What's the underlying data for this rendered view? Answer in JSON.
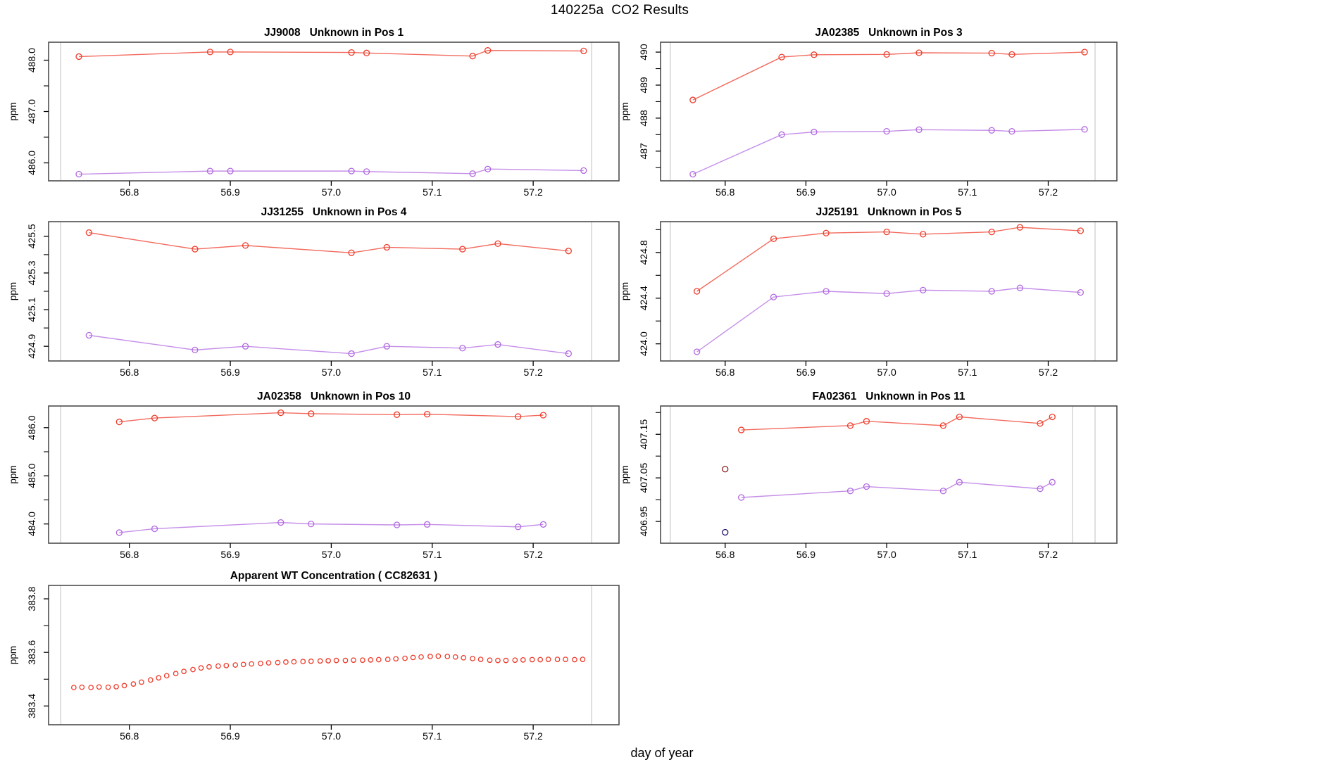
{
  "title": "140225a  CO2 Results",
  "xlabel": "day of year",
  "colors": {
    "red": "#ee3a28",
    "purple": "#b168e0",
    "dark_red": "#8b1a1a",
    "dark_navy": "#23136b",
    "vline_gray": "#d2d2d2",
    "axis": "#4d4d4d",
    "text": "#000000",
    "background": "#ffffff"
  },
  "chart_data": [
    {
      "id": "pos1",
      "type": "line",
      "row": 0,
      "col": 0,
      "title": "JJ9008   Unknown in Pos 1",
      "ylabel": "ppm",
      "xlim": [
        56.72,
        57.285
      ],
      "ylim": [
        485.65,
        488.35
      ],
      "xticks": [
        56.8,
        56.9,
        57.0,
        57.1,
        57.2
      ],
      "xtick_labels": [
        "56.8",
        "56.9",
        "57.0",
        "57.1",
        "57.2"
      ],
      "yticks": [
        486.0,
        487.0,
        488.0
      ],
      "ytick_labels": [
        "486.0",
        "487.0",
        "488.0"
      ],
      "yticks_minor": [
        486.5,
        487.5
      ],
      "vlines": [
        56.732,
        57.258
      ],
      "series": [
        {
          "name": "red-series",
          "color": "red",
          "line": true,
          "marker_r": 4,
          "x": [
            56.75,
            56.88,
            56.9,
            57.02,
            57.035,
            57.14,
            57.155,
            57.25
          ],
          "y": [
            488.07,
            488.16,
            488.16,
            488.15,
            488.14,
            488.08,
            488.19,
            488.18
          ]
        },
        {
          "name": "purple-series",
          "color": "purple",
          "line": true,
          "marker_r": 4,
          "x": [
            56.75,
            56.88,
            56.9,
            57.02,
            57.035,
            57.14,
            57.155,
            57.25
          ],
          "y": [
            485.78,
            485.84,
            485.84,
            485.84,
            485.83,
            485.79,
            485.88,
            485.85
          ]
        }
      ]
    },
    {
      "id": "pos3",
      "type": "line",
      "row": 0,
      "col": 1,
      "title": "JA02385   Unknown in Pos 3",
      "ylabel": "ppm",
      "xlim": [
        56.72,
        57.285
      ],
      "ylim": [
        486.1,
        490.3
      ],
      "xticks": [
        56.8,
        56.9,
        57.0,
        57.1,
        57.2
      ],
      "xtick_labels": [
        "56.8",
        "56.9",
        "57.0",
        "57.1",
        "57.2"
      ],
      "yticks": [
        487,
        488,
        489,
        490
      ],
      "ytick_labels": [
        "487",
        "488",
        "489",
        "490"
      ],
      "yticks_minor": [
        486.5,
        487.5,
        488.5,
        489.5
      ],
      "vlines": [
        56.732,
        57.258
      ],
      "series": [
        {
          "name": "red-series",
          "color": "red",
          "line": true,
          "marker_r": 4,
          "x": [
            56.76,
            56.87,
            56.91,
            57.0,
            57.04,
            57.13,
            57.155,
            57.245
          ],
          "y": [
            488.55,
            489.85,
            489.92,
            489.93,
            489.98,
            489.97,
            489.93,
            490.0
          ]
        },
        {
          "name": "purple-series",
          "color": "purple",
          "line": true,
          "marker_r": 4,
          "x": [
            56.76,
            56.87,
            56.91,
            57.0,
            57.04,
            57.13,
            57.155,
            57.245
          ],
          "y": [
            486.3,
            487.5,
            487.58,
            487.6,
            487.65,
            487.63,
            487.6,
            487.66
          ]
        }
      ]
    },
    {
      "id": "pos4",
      "type": "line",
      "row": 1,
      "col": 0,
      "title": "JJ31255   Unknown in Pos 4",
      "ylabel": "ppm",
      "xlim": [
        56.72,
        57.285
      ],
      "ylim": [
        424.82,
        425.58
      ],
      "xticks": [
        56.8,
        56.9,
        57.0,
        57.1,
        57.2
      ],
      "xtick_labels": [
        "56.8",
        "56.9",
        "57.0",
        "57.1",
        "57.2"
      ],
      "yticks": [
        424.9,
        425.1,
        425.3,
        425.5
      ],
      "ytick_labels": [
        "424.9",
        "425.1",
        "425.3",
        "425.5"
      ],
      "yticks_minor": [
        425.0,
        425.2,
        425.4
      ],
      "vlines": [
        56.732,
        57.258
      ],
      "series": [
        {
          "name": "red-series",
          "color": "red",
          "line": true,
          "marker_r": 4,
          "x": [
            56.76,
            56.865,
            56.915,
            57.02,
            57.055,
            57.13,
            57.165,
            57.235
          ],
          "y": [
            425.52,
            425.43,
            425.45,
            425.41,
            425.44,
            425.43,
            425.46,
            425.42
          ]
        },
        {
          "name": "purple-series",
          "color": "purple",
          "line": true,
          "marker_r": 4,
          "x": [
            56.76,
            56.865,
            56.915,
            57.02,
            57.055,
            57.13,
            57.165,
            57.235
          ],
          "y": [
            424.96,
            424.88,
            424.9,
            424.86,
            424.9,
            424.89,
            424.91,
            424.86
          ]
        }
      ]
    },
    {
      "id": "pos5",
      "type": "line",
      "row": 1,
      "col": 1,
      "title": "JJ25191   Unknown in Pos 5",
      "ylabel": "ppm",
      "xlim": [
        56.72,
        57.285
      ],
      "ylim": [
        423.85,
        425.07
      ],
      "xticks": [
        56.8,
        56.9,
        57.0,
        57.1,
        57.2
      ],
      "xtick_labels": [
        "56.8",
        "56.9",
        "57.0",
        "57.1",
        "57.2"
      ],
      "yticks": [
        424.0,
        424.4,
        424.8
      ],
      "ytick_labels": [
        "424.0",
        "424.4",
        "424.8"
      ],
      "yticks_minor": [
        424.2,
        424.6,
        425.0
      ],
      "vlines": [
        56.732,
        57.258
      ],
      "series": [
        {
          "name": "red-series",
          "color": "red",
          "line": true,
          "marker_r": 4,
          "x": [
            56.765,
            56.86,
            56.925,
            57.0,
            57.045,
            57.13,
            57.165,
            57.24
          ],
          "y": [
            424.46,
            424.92,
            424.97,
            424.98,
            424.96,
            424.98,
            425.02,
            424.99
          ]
        },
        {
          "name": "purple-series",
          "color": "purple",
          "line": true,
          "marker_r": 4,
          "x": [
            56.765,
            56.86,
            56.925,
            57.0,
            57.045,
            57.13,
            57.165,
            57.24
          ],
          "y": [
            423.93,
            424.41,
            424.46,
            424.44,
            424.47,
            424.46,
            424.49,
            424.45
          ]
        }
      ]
    },
    {
      "id": "pos10",
      "type": "line",
      "row": 2,
      "col": 0,
      "title": "JA02358   Unknown in Pos 10",
      "ylabel": "ppm",
      "xlim": [
        56.72,
        57.285
      ],
      "ylim": [
        483.6,
        486.45
      ],
      "xticks": [
        56.8,
        56.9,
        57.0,
        57.1,
        57.2
      ],
      "xtick_labels": [
        "56.8",
        "56.9",
        "57.0",
        "57.1",
        "57.2"
      ],
      "yticks": [
        484.0,
        485.0,
        486.0
      ],
      "ytick_labels": [
        "484.0",
        "485.0",
        "486.0"
      ],
      "yticks_minor": [
        484.5,
        485.5
      ],
      "vlines": [
        56.732,
        57.258
      ],
      "series": [
        {
          "name": "red-series",
          "color": "red",
          "line": true,
          "marker_r": 4,
          "x": [
            56.79,
            56.825,
            56.95,
            56.98,
            57.065,
            57.095,
            57.185,
            57.21
          ],
          "y": [
            486.12,
            486.2,
            486.31,
            486.29,
            486.27,
            486.28,
            486.23,
            486.26
          ]
        },
        {
          "name": "purple-series",
          "color": "purple",
          "line": true,
          "marker_r": 4,
          "x": [
            56.79,
            56.825,
            56.95,
            56.98,
            57.065,
            57.095,
            57.185,
            57.21
          ],
          "y": [
            483.82,
            483.9,
            484.03,
            484.0,
            483.98,
            483.99,
            483.94,
            483.99
          ]
        }
      ]
    },
    {
      "id": "pos11",
      "type": "line",
      "row": 2,
      "col": 1,
      "title": "FA02361   Unknown in Pos 11",
      "ylabel": "ppm",
      "xlim": [
        56.72,
        57.285
      ],
      "ylim": [
        406.9,
        407.215
      ],
      "xticks": [
        56.8,
        56.9,
        57.0,
        57.1,
        57.2
      ],
      "xtick_labels": [
        "56.8",
        "56.9",
        "57.0",
        "57.1",
        "57.2"
      ],
      "yticks": [
        406.95,
        407.05,
        407.15
      ],
      "ytick_labels": [
        "406.95",
        "407.05",
        "407.15"
      ],
      "yticks_minor": [
        407.0,
        407.1,
        407.2
      ],
      "vlines": [
        56.732,
        57.23,
        57.258
      ],
      "series": [
        {
          "name": "red-series",
          "color": "red",
          "line": true,
          "marker_r": 4,
          "x": [
            56.82,
            56.955,
            56.975,
            57.07,
            57.09,
            57.19,
            57.205
          ],
          "y": [
            407.16,
            407.17,
            407.18,
            407.17,
            407.19,
            407.175,
            407.19
          ]
        },
        {
          "name": "purple-series",
          "color": "purple",
          "line": true,
          "marker_r": 4,
          "x": [
            56.82,
            56.955,
            56.975,
            57.07,
            57.09,
            57.19,
            57.205
          ],
          "y": [
            407.005,
            407.02,
            407.03,
            407.02,
            407.04,
            407.025,
            407.04
          ]
        },
        {
          "name": "red-outlier",
          "color": "dark_red",
          "line": false,
          "marker_r": 4,
          "x": [
            56.8
          ],
          "y": [
            407.07
          ]
        },
        {
          "name": "purple-outlier",
          "color": "dark_navy",
          "line": false,
          "marker_r": 4,
          "x": [
            56.8
          ],
          "y": [
            406.925
          ]
        }
      ]
    },
    {
      "id": "wt-concentration",
      "type": "scatter",
      "row": 3,
      "col": 0,
      "title": "Apparent WT Concentration ( CC82631 )",
      "ylabel": "ppm",
      "xlim": [
        56.72,
        57.285
      ],
      "ylim": [
        383.33,
        383.85
      ],
      "xticks": [
        56.8,
        56.9,
        57.0,
        57.1,
        57.2
      ],
      "xtick_labels": [
        "56.8",
        "56.9",
        "57.0",
        "57.1",
        "57.2"
      ],
      "yticks": [
        383.4,
        383.6,
        383.8
      ],
      "ytick_labels": [
        "383.4",
        "383.6",
        "383.8"
      ],
      "yticks_minor": [
        383.5,
        383.7
      ],
      "vlines": [
        56.732,
        57.258
      ],
      "series": [
        {
          "name": "red-series",
          "color": "red",
          "line": false,
          "marker_r": 3.2,
          "x": [
            56.745,
            56.753,
            56.762,
            56.77,
            56.779,
            56.787,
            56.795,
            56.804,
            56.812,
            56.821,
            56.829,
            56.837,
            56.846,
            56.854,
            56.863,
            56.871,
            56.879,
            56.888,
            56.896,
            56.905,
            56.913,
            56.921,
            56.93,
            56.938,
            56.947,
            56.955,
            56.963,
            56.972,
            56.98,
            56.989,
            56.997,
            57.005,
            57.014,
            57.022,
            57.031,
            57.039,
            57.047,
            57.056,
            57.064,
            57.073,
            57.081,
            57.089,
            57.098,
            57.106,
            57.115,
            57.123,
            57.131,
            57.14,
            57.148,
            57.157,
            57.165,
            57.173,
            57.182,
            57.19,
            57.199,
            57.207,
            57.215,
            57.224,
            57.232,
            57.241,
            57.249
          ],
          "y": [
            383.469,
            383.47,
            383.469,
            383.471,
            383.47,
            383.472,
            383.476,
            383.482,
            383.489,
            383.497,
            383.505,
            383.513,
            383.521,
            383.529,
            383.536,
            383.542,
            383.546,
            383.549,
            383.551,
            383.553,
            383.555,
            383.557,
            383.559,
            383.561,
            383.562,
            383.564,
            383.565,
            383.566,
            383.567,
            383.568,
            383.569,
            383.57,
            383.57,
            383.571,
            383.571,
            383.572,
            383.573,
            383.574,
            383.576,
            383.578,
            383.581,
            383.583,
            383.585,
            383.586,
            383.585,
            383.583,
            383.58,
            383.577,
            383.574,
            383.571,
            383.57,
            383.57,
            383.571,
            383.572,
            383.573,
            383.573,
            383.574,
            383.574,
            383.574,
            383.573,
            383.574
          ]
        }
      ]
    }
  ]
}
